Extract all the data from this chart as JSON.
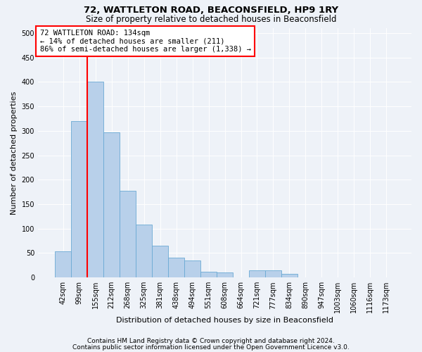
{
  "title": "72, WATTLETON ROAD, BEACONSFIELD, HP9 1RY",
  "subtitle": "Size of property relative to detached houses in Beaconsfield",
  "xlabel": "Distribution of detached houses by size in Beaconsfield",
  "ylabel": "Number of detached properties",
  "footnote1": "Contains HM Land Registry data © Crown copyright and database right 2024.",
  "footnote2": "Contains public sector information licensed under the Open Government Licence v3.0.",
  "bin_labels": [
    "42sqm",
    "99sqm",
    "155sqm",
    "212sqm",
    "268sqm",
    "325sqm",
    "381sqm",
    "438sqm",
    "494sqm",
    "551sqm",
    "608sqm",
    "664sqm",
    "721sqm",
    "777sqm",
    "834sqm",
    "890sqm",
    "947sqm",
    "1003sqm",
    "1060sqm",
    "1116sqm",
    "1173sqm"
  ],
  "bar_values": [
    54,
    320,
    400,
    297,
    178,
    109,
    65,
    40,
    35,
    12,
    10,
    0,
    15,
    15,
    8,
    0,
    0,
    0,
    0,
    0,
    0
  ],
  "bar_color": "#b8d0ea",
  "bar_edgecolor": "#6aaad4",
  "vline_color": "red",
  "vline_x_index": 1.5,
  "annotation_text": "72 WATTLETON ROAD: 134sqm\n← 14% of detached houses are smaller (211)\n86% of semi-detached houses are larger (1,338) →",
  "annotation_box_color": "white",
  "annotation_box_edgecolor": "red",
  "ylim": [
    0,
    510
  ],
  "yticks": [
    0,
    50,
    100,
    150,
    200,
    250,
    300,
    350,
    400,
    450,
    500
  ],
  "bg_color": "#eef2f8",
  "title_fontsize": 9.5,
  "subtitle_fontsize": 8.5,
  "xlabel_fontsize": 8,
  "ylabel_fontsize": 8,
  "tick_fontsize": 7,
  "annot_fontsize": 7.5,
  "footnote_fontsize": 6.5
}
